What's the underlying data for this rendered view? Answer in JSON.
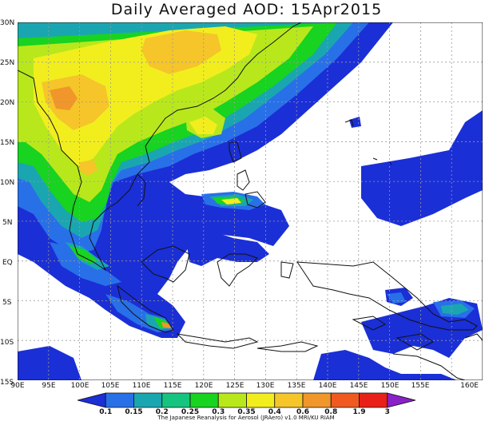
{
  "title": "Daily Averaged AOD: 15Apr2015",
  "lat_labels": [
    "30N",
    "25N",
    "20N",
    "15N",
    "10N",
    "5N",
    "EQ",
    "5S",
    "10S",
    "15S"
  ],
  "lon_labels": [
    "90E",
    "95E",
    "100E",
    "105E",
    "110E",
    "115E",
    "120E",
    "125E",
    "130E",
    "135E",
    "140E",
    "145E",
    "150E",
    "155E",
    "160E"
  ],
  "legend": {
    "levels": [
      "0.1",
      "0.15",
      "0.2",
      "0.25",
      "0.3",
      "0.35",
      "0.4",
      "0.6",
      "0.8",
      "1.9",
      "3"
    ],
    "colors": [
      "#1b2fd6",
      "#2870e8",
      "#1aa6b0",
      "#15c47e",
      "#18d320",
      "#b8e81c",
      "#f2ee1e",
      "#f5c52a",
      "#f0962a",
      "#f05a20",
      "#e82018",
      "#8a20c8"
    ],
    "credit": "The Japanese Reanalysis for Aerosol (JRAero) v1.0 MRI/KU RIAM"
  }
}
